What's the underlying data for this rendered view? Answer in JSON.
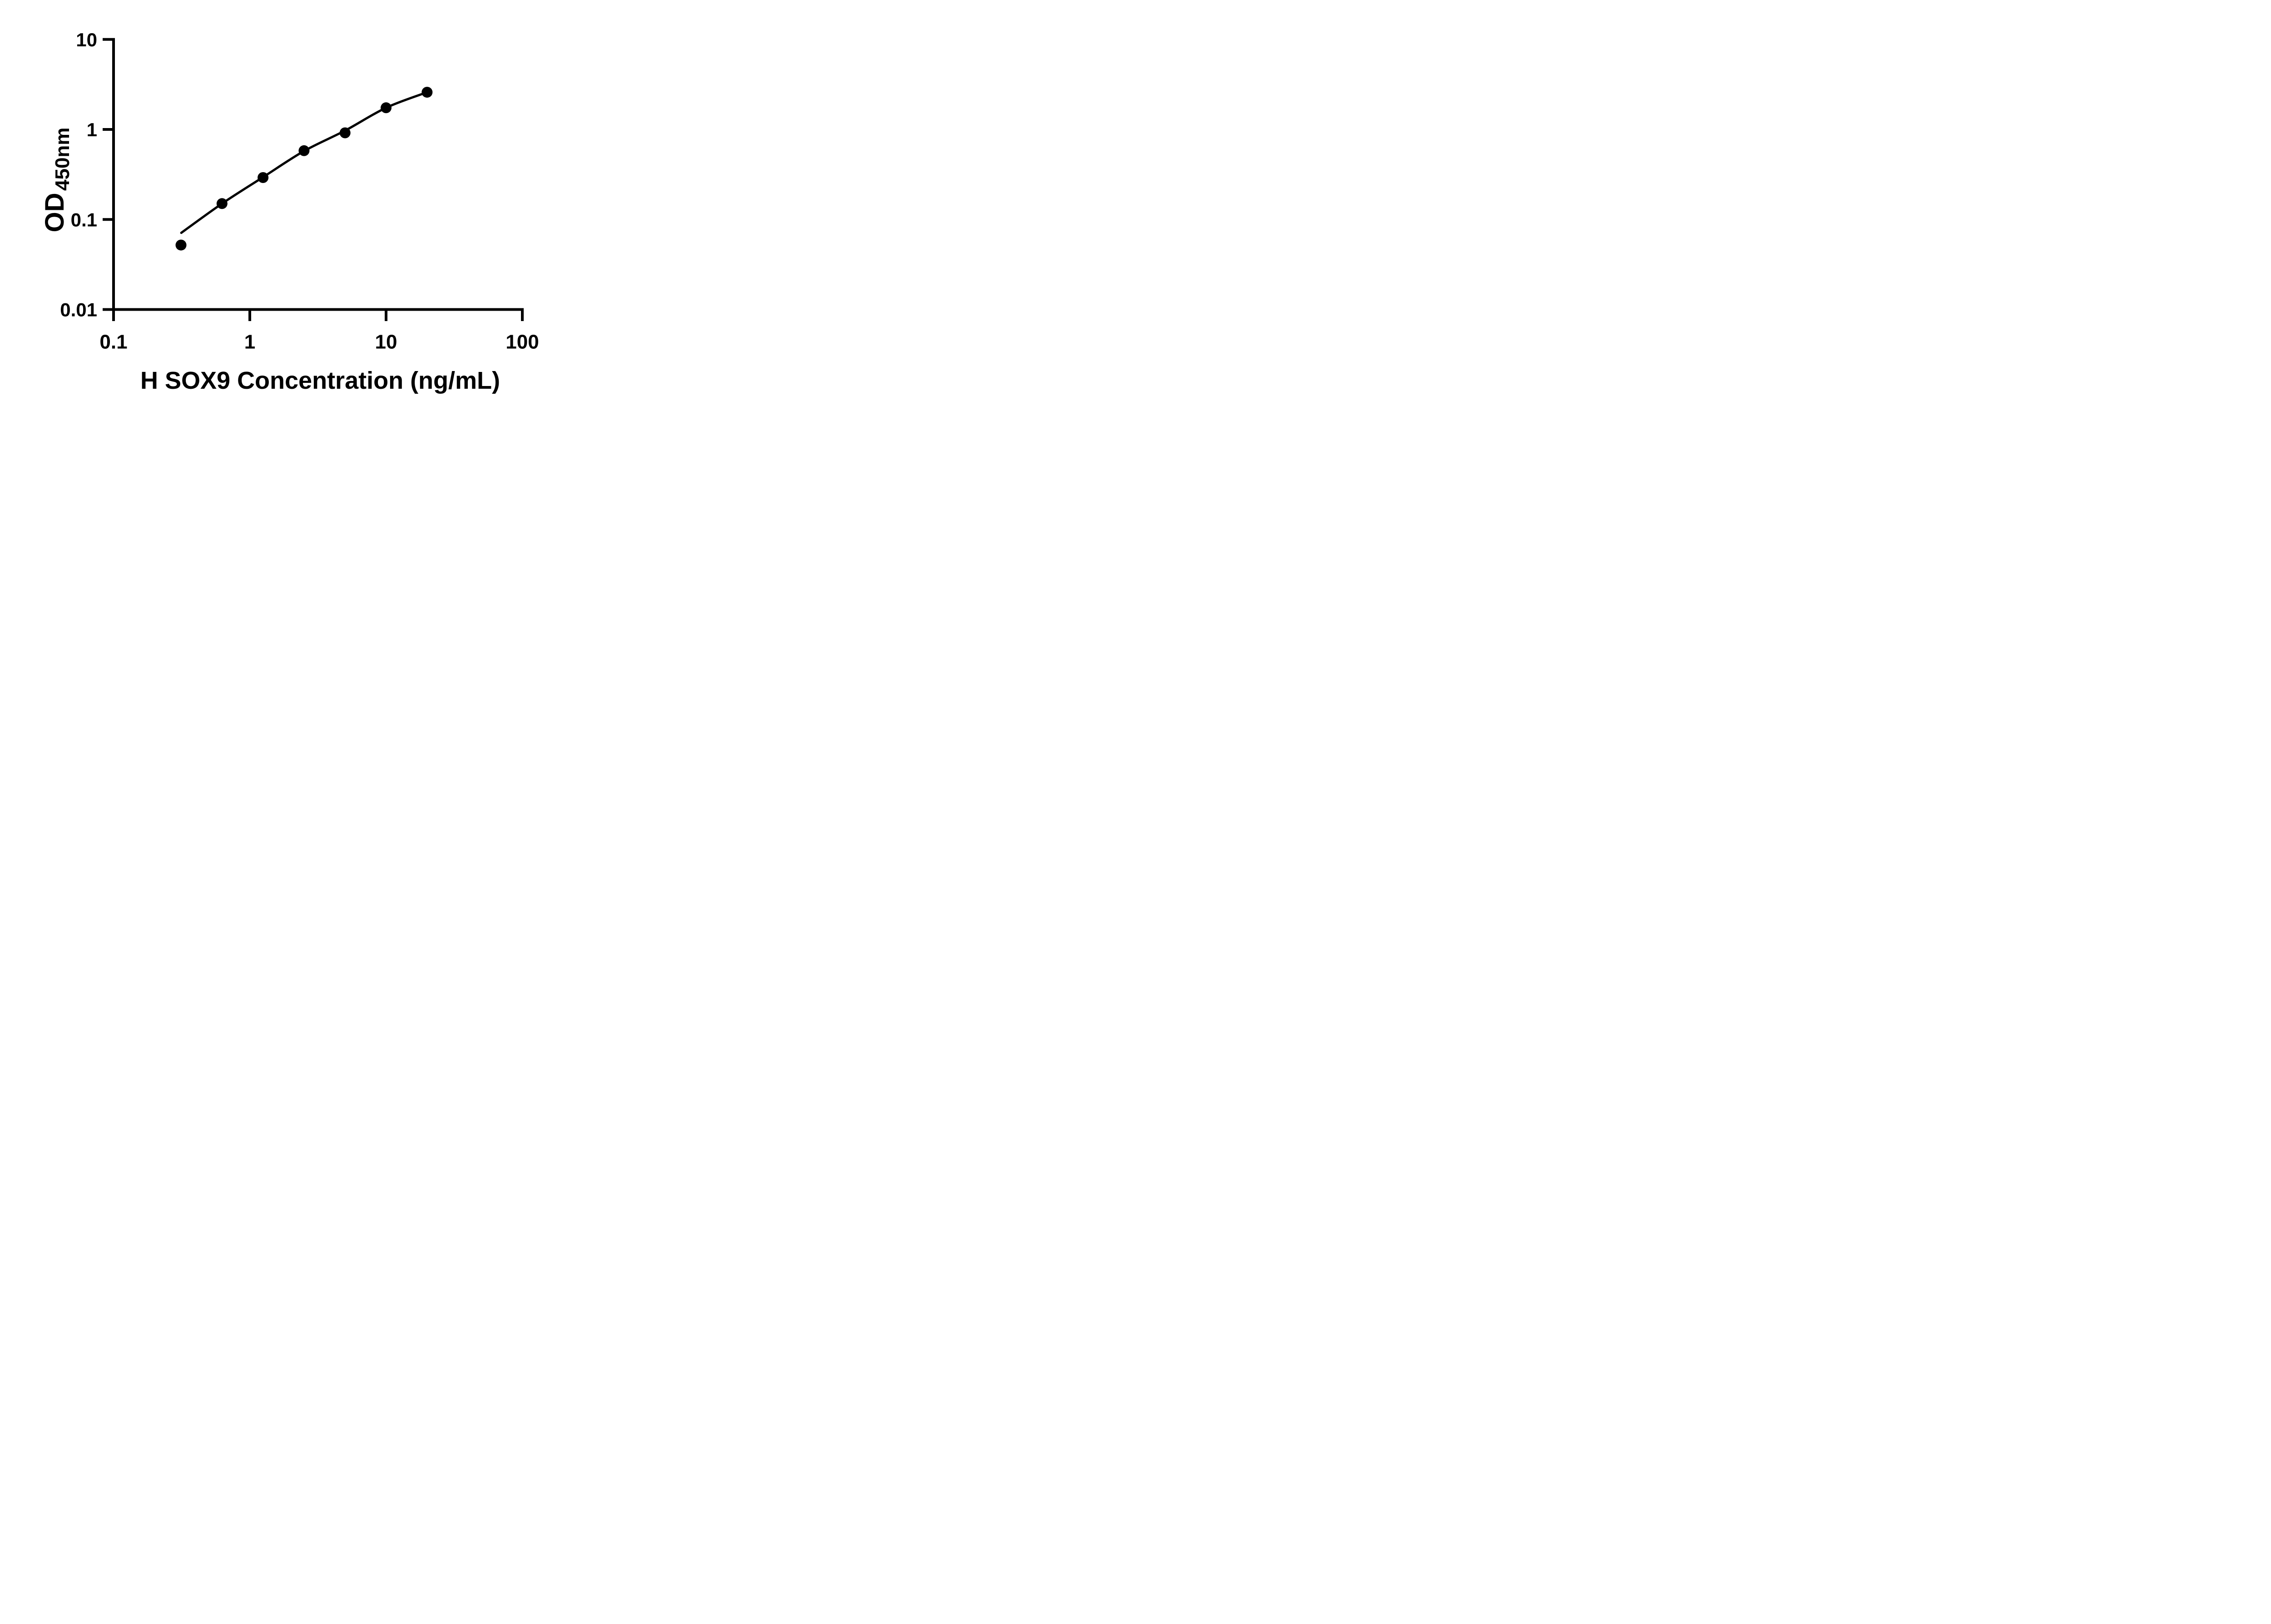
{
  "figure": {
    "background_color": "#ffffff",
    "ink_color": "#000000"
  },
  "chart_data": {
    "type": "scatter",
    "title": "",
    "xlabel": "H SOX9 Concentration (ng/mL)",
    "ylabel": "OD",
    "ylabel_subscript": "450nm",
    "x_scale": "log",
    "y_scale": "log",
    "xlim": [
      0.1,
      100
    ],
    "ylim": [
      0.01,
      10
    ],
    "grid": false,
    "legend": "none",
    "x_ticks": [
      {
        "value": 0.1,
        "label": "0.1"
      },
      {
        "value": 1,
        "label": "1"
      },
      {
        "value": 10,
        "label": "10"
      },
      {
        "value": 100,
        "label": "100"
      }
    ],
    "y_ticks": [
      {
        "value": 0.01,
        "label": "0.01"
      },
      {
        "value": 0.1,
        "label": "0.1"
      },
      {
        "value": 1,
        "label": "1"
      },
      {
        "value": 10,
        "label": "10"
      }
    ],
    "series": [
      {
        "name": "standard-points",
        "marker": "circle",
        "marker_color": "#000000",
        "points": [
          {
            "x": 0.3125,
            "y": 0.052
          },
          {
            "x": 0.625,
            "y": 0.15
          },
          {
            "x": 1.25,
            "y": 0.292
          },
          {
            "x": 2.5,
            "y": 0.581
          },
          {
            "x": 5,
            "y": 0.917
          },
          {
            "x": 10,
            "y": 1.74
          },
          {
            "x": 20,
            "y": 2.59
          }
        ]
      }
    ],
    "fit_curve": {
      "name": "standard-curve-fit",
      "color": "#000000",
      "points": [
        [
          0.314,
          0.071
        ],
        [
          0.625,
          0.15
        ],
        [
          1.25,
          0.295
        ],
        [
          2.5,
          0.575
        ],
        [
          5,
          0.97
        ],
        [
          10,
          1.74
        ],
        [
          20,
          2.59
        ]
      ]
    }
  }
}
